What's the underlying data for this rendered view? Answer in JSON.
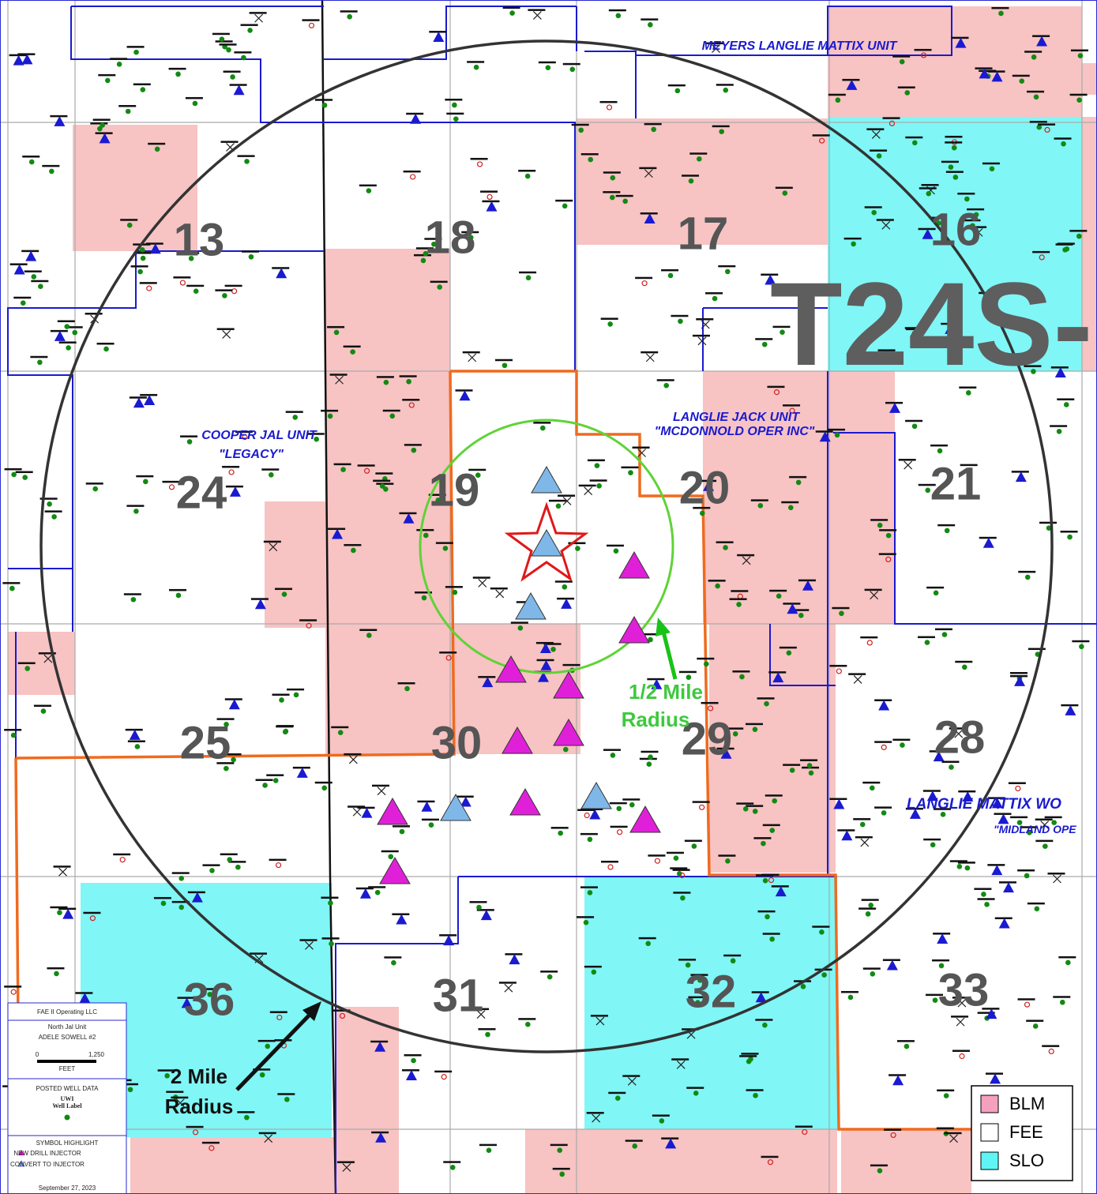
{
  "map": {
    "sections": [
      "13",
      "18",
      "17",
      "16",
      "24",
      "19",
      "20",
      "21",
      "25",
      "30",
      "29",
      "28",
      "36",
      "31",
      "32",
      "33"
    ],
    "township": "T24S-",
    "units": [
      "MEYERS LANGLIE MATTIX UNIT",
      "COOPER JAL UNIT",
      "\"LEGACY\"",
      "LANGLIE JACK UNIT",
      "\"MCDONNOLD OPER INC\"",
      "LANGLIE MATTIX WO",
      "\"MIDLAND OPE"
    ],
    "annotations": {
      "half_mile": [
        "1/2 Mile",
        "Radius"
      ],
      "two_mile": [
        "2 Mile",
        "Radius"
      ]
    },
    "legend": [
      "BLM",
      "FEE",
      "SLO"
    ],
    "info_box": {
      "company": "FAE II Operating LLC",
      "project": "North Jal Unit",
      "well": "ADELE SOWELL #2",
      "scale": [
        "0",
        "1,250",
        "FEET"
      ],
      "posted": "POSTED WELL DATA",
      "uwi": "UWI",
      "well_label": "Well Label",
      "symbol_title": "SYMBOL HIGHLIGHT",
      "symbols": [
        "NEW DRILL INJECTOR",
        "CONVERT TO INJECTOR"
      ],
      "date": "September 27, 2023"
    }
  }
}
